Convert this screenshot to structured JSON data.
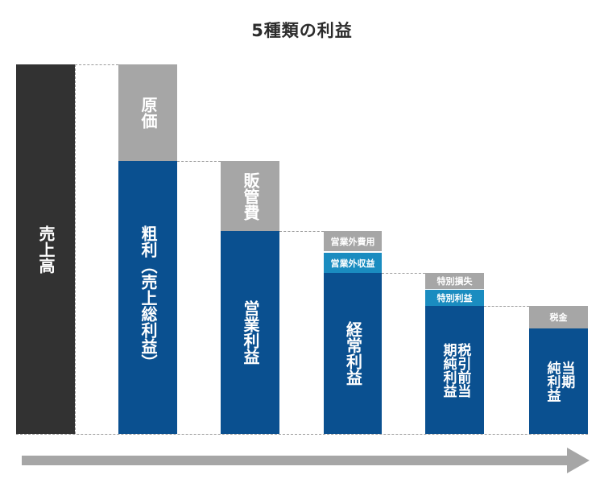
{
  "title": "5種類の利益",
  "blocks": {
    "sales": "売上高",
    "cost": "原価",
    "gross_main": "粗利",
    "gross_sub": "（売上総利益）",
    "sga": "販管費",
    "operating": "営業利益",
    "non_op_expense": "営業外費用",
    "non_op_income": "営業外収益",
    "ordinary": "経常利益",
    "extra_loss": "特別損失",
    "extra_gain": "特別利益",
    "pretax_col1": "税引前当",
    "pretax_col2": "期純利益",
    "tax": "税金",
    "net_col1": "当期",
    "net_col2": "純利益"
  },
  "colors": {
    "sales": "#323232",
    "profit": "#0a5090",
    "deduction": "#a6a6a6",
    "addition": "#1a8cc0",
    "arrow": "#a6a6a6"
  },
  "arrow_icon": "right-arrow-icon"
}
